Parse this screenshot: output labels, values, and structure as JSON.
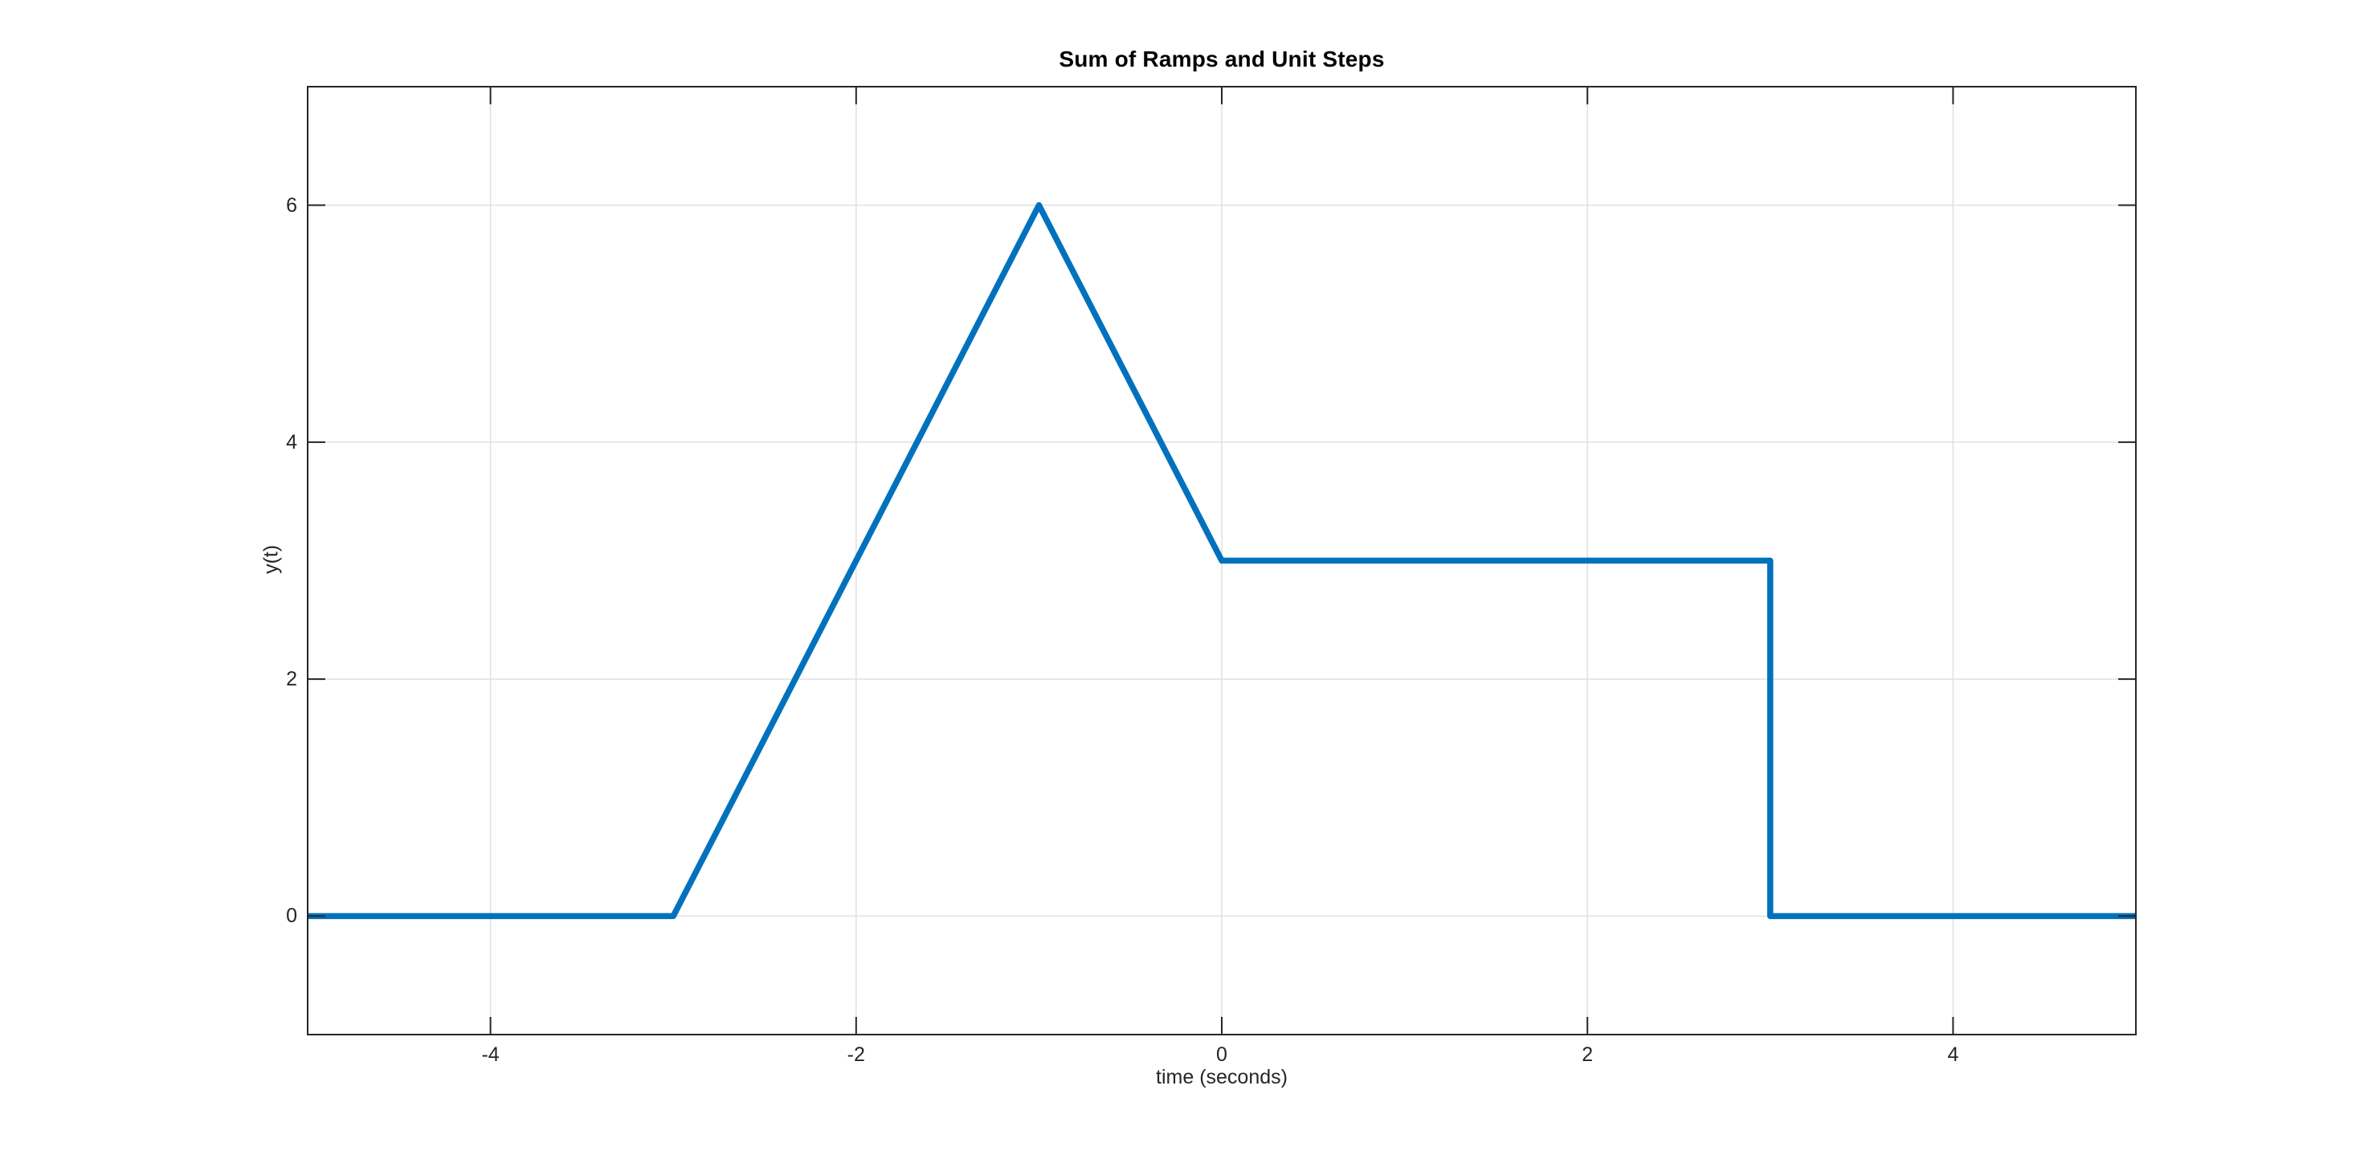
{
  "chart_data": {
    "type": "line",
    "title": "Sum of Ramps and Unit Steps",
    "xlabel": "time (seconds)",
    "ylabel": "y(t)",
    "xlim": [
      -5,
      5
    ],
    "ylim": [
      -1,
      7
    ],
    "xticks": [
      -4,
      -2,
      0,
      2,
      4
    ],
    "yticks": [
      0,
      2,
      4,
      6
    ],
    "grid": true,
    "box": true,
    "tick_direction": "in",
    "tick_length": 22,
    "legend": null,
    "series": [
      {
        "name": "sum-of-ramps-and-steps-signal",
        "color": "#0072BD",
        "line_width": 7.5,
        "points": [
          [
            -5,
            0
          ],
          [
            -3,
            0
          ],
          [
            -1,
            6
          ],
          [
            0,
            3
          ],
          [
            3,
            3
          ],
          [
            3,
            0
          ],
          [
            5,
            0
          ]
        ]
      }
    ],
    "styles": {
      "background": "#ffffff",
      "grid_color": "#e0e0e0",
      "grid_width": 1.5,
      "axis_color": "#262626",
      "axis_width": 2,
      "text_color": "#262626",
      "title_color": "#000000"
    }
  }
}
